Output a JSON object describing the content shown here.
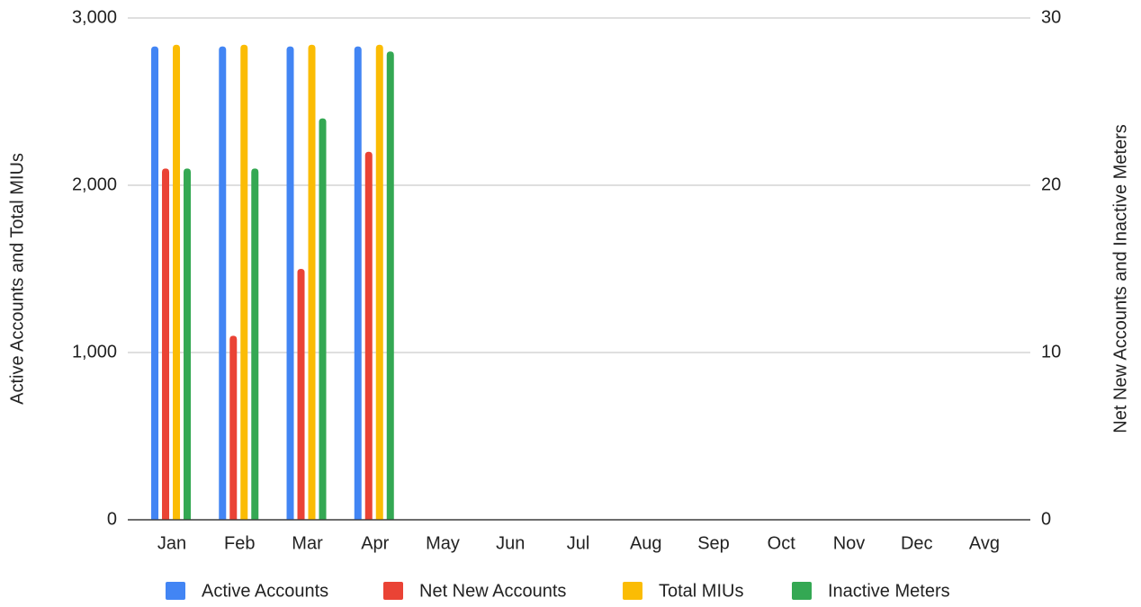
{
  "chart_data": {
    "type": "bar",
    "categories": [
      "Jan",
      "Feb",
      "Mar",
      "Apr",
      "May",
      "Jun",
      "Jul",
      "Aug",
      "Sep",
      "Oct",
      "Nov",
      "Dec",
      "Avg"
    ],
    "series": [
      {
        "name": "Active Accounts",
        "color": "#4285f4",
        "values": [
          2830,
          2830,
          2830,
          2830,
          null,
          null,
          null,
          null,
          null,
          null,
          null,
          null,
          null
        ]
      },
      {
        "name": "Net New Accounts",
        "color": "#ea4335",
        "axis": "y2",
        "values": [
          21,
          11,
          15,
          22,
          null,
          null,
          null,
          null,
          null,
          null,
          null,
          null,
          null
        ]
      },
      {
        "name": "Total MIUs",
        "color": "#fbbc04",
        "values": [
          2840,
          2840,
          2840,
          2840,
          null,
          null,
          null,
          null,
          null,
          null,
          null,
          null,
          null
        ]
      },
      {
        "name": "Inactive Meters",
        "color": "#34a853",
        "axis": "y2",
        "values": [
          21,
          21,
          24,
          28,
          null,
          null,
          null,
          null,
          null,
          null,
          null,
          null,
          null
        ]
      }
    ],
    "ylabel": "Active Accounts and Total MIUs",
    "y2label": "Net New Accounts and Inactive Meters",
    "ylim": [
      0,
      3000
    ],
    "yticks": [
      0,
      {
        "value": 1000,
        "label": "1,000"
      },
      {
        "value": 2000,
        "label": "2,000"
      },
      {
        "value": 3000,
        "label": "3,000"
      }
    ],
    "y2lim": [
      0,
      30
    ],
    "y2ticks": [
      0,
      10,
      20,
      30
    ],
    "grid": true,
    "legend": "bottom"
  }
}
